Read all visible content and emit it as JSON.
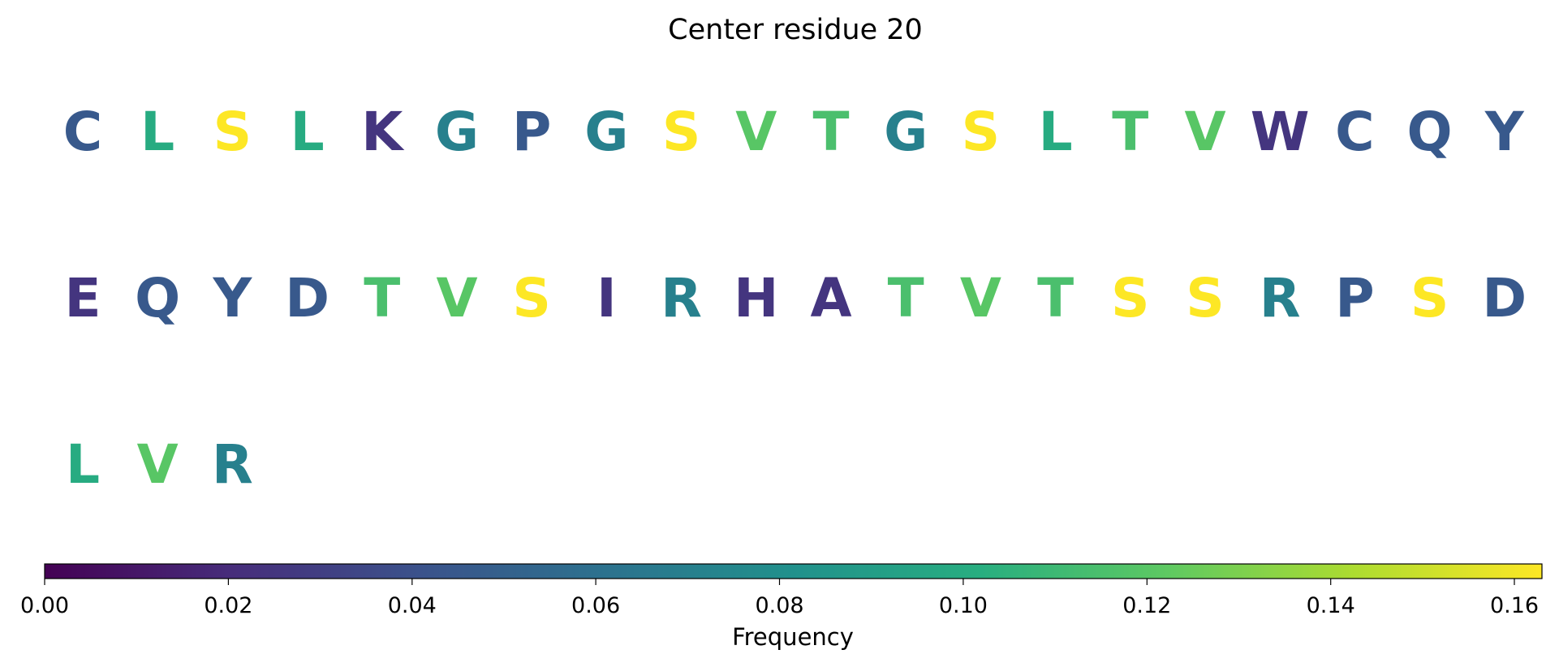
{
  "chart_data": {
    "type": "sequence-logo-grid",
    "title": "Center residue 20",
    "rows": [
      {
        "residues": [
          "C",
          "L",
          "S",
          "L",
          "K",
          "G",
          "P",
          "G",
          "S",
          "V",
          "T",
          "G",
          "S",
          "L",
          "T",
          "V",
          "W",
          "C",
          "Q",
          "Y"
        ],
        "frequencies": [
          0.045,
          0.1,
          0.163,
          0.1,
          0.025,
          0.07,
          0.045,
          0.07,
          0.163,
          0.12,
          0.115,
          0.07,
          0.163,
          0.1,
          0.115,
          0.12,
          0.025,
          0.045,
          0.045,
          0.045
        ]
      },
      {
        "residues": [
          "E",
          "Q",
          "Y",
          "D",
          "T",
          "V",
          "S",
          "I",
          "R",
          "H",
          "A",
          "T",
          "V",
          "T",
          "S",
          "S",
          "R",
          "P",
          "S",
          "D"
        ],
        "frequencies": [
          0.025,
          0.045,
          0.045,
          0.045,
          0.115,
          0.12,
          0.163,
          0.025,
          0.07,
          0.025,
          0.025,
          0.115,
          0.12,
          0.115,
          0.163,
          0.163,
          0.07,
          0.045,
          0.163,
          0.045
        ]
      },
      {
        "residues": [
          "L",
          "V",
          "R"
        ],
        "frequencies": [
          0.1,
          0.12,
          0.07
        ]
      }
    ],
    "colormap": "viridis",
    "colorbar": {
      "label": "Frequency",
      "min": 0.0,
      "max": 0.163,
      "ticks": [
        0.0,
        0.02,
        0.04,
        0.06,
        0.08,
        0.1,
        0.12,
        0.14,
        0.16
      ],
      "tick_labels": [
        "0.00",
        "0.02",
        "0.04",
        "0.06",
        "0.08",
        "0.10",
        "0.12",
        "0.14",
        "0.16"
      ],
      "orientation": "horizontal",
      "placement": "bottom"
    }
  }
}
